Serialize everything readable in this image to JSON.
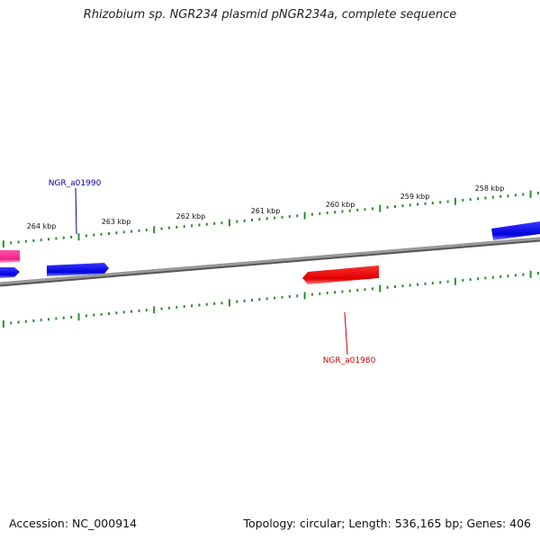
{
  "title": "Rhizobium sp. NGR234 plasmid pNGR234a, complete sequence",
  "footer": {
    "accession": "Accession: NC_000914",
    "summary": "Topology: circular; Length: 536,165 bp; Genes: 406"
  },
  "colors": {
    "backbone": "#7f7f7f",
    "tick": "#2e8b2e",
    "forward_gene": "#1a1aff",
    "reverse_gene": "#ee1111",
    "other_gene": "#ff3399",
    "label_forward": "#000099",
    "label_reverse": "#cc0000"
  },
  "ticks": {
    "major_labels": [
      "264 kbp",
      "263 kbp",
      "262 kbp",
      "261 kbp",
      "260 kbp",
      "259 kbp",
      "258 kbp"
    ]
  },
  "genes": [
    {
      "name": "NGR_a01990",
      "strand": "forward",
      "labeled": true
    },
    {
      "name": "NGR_a01980",
      "strand": "reverse",
      "labeled": true
    }
  ]
}
